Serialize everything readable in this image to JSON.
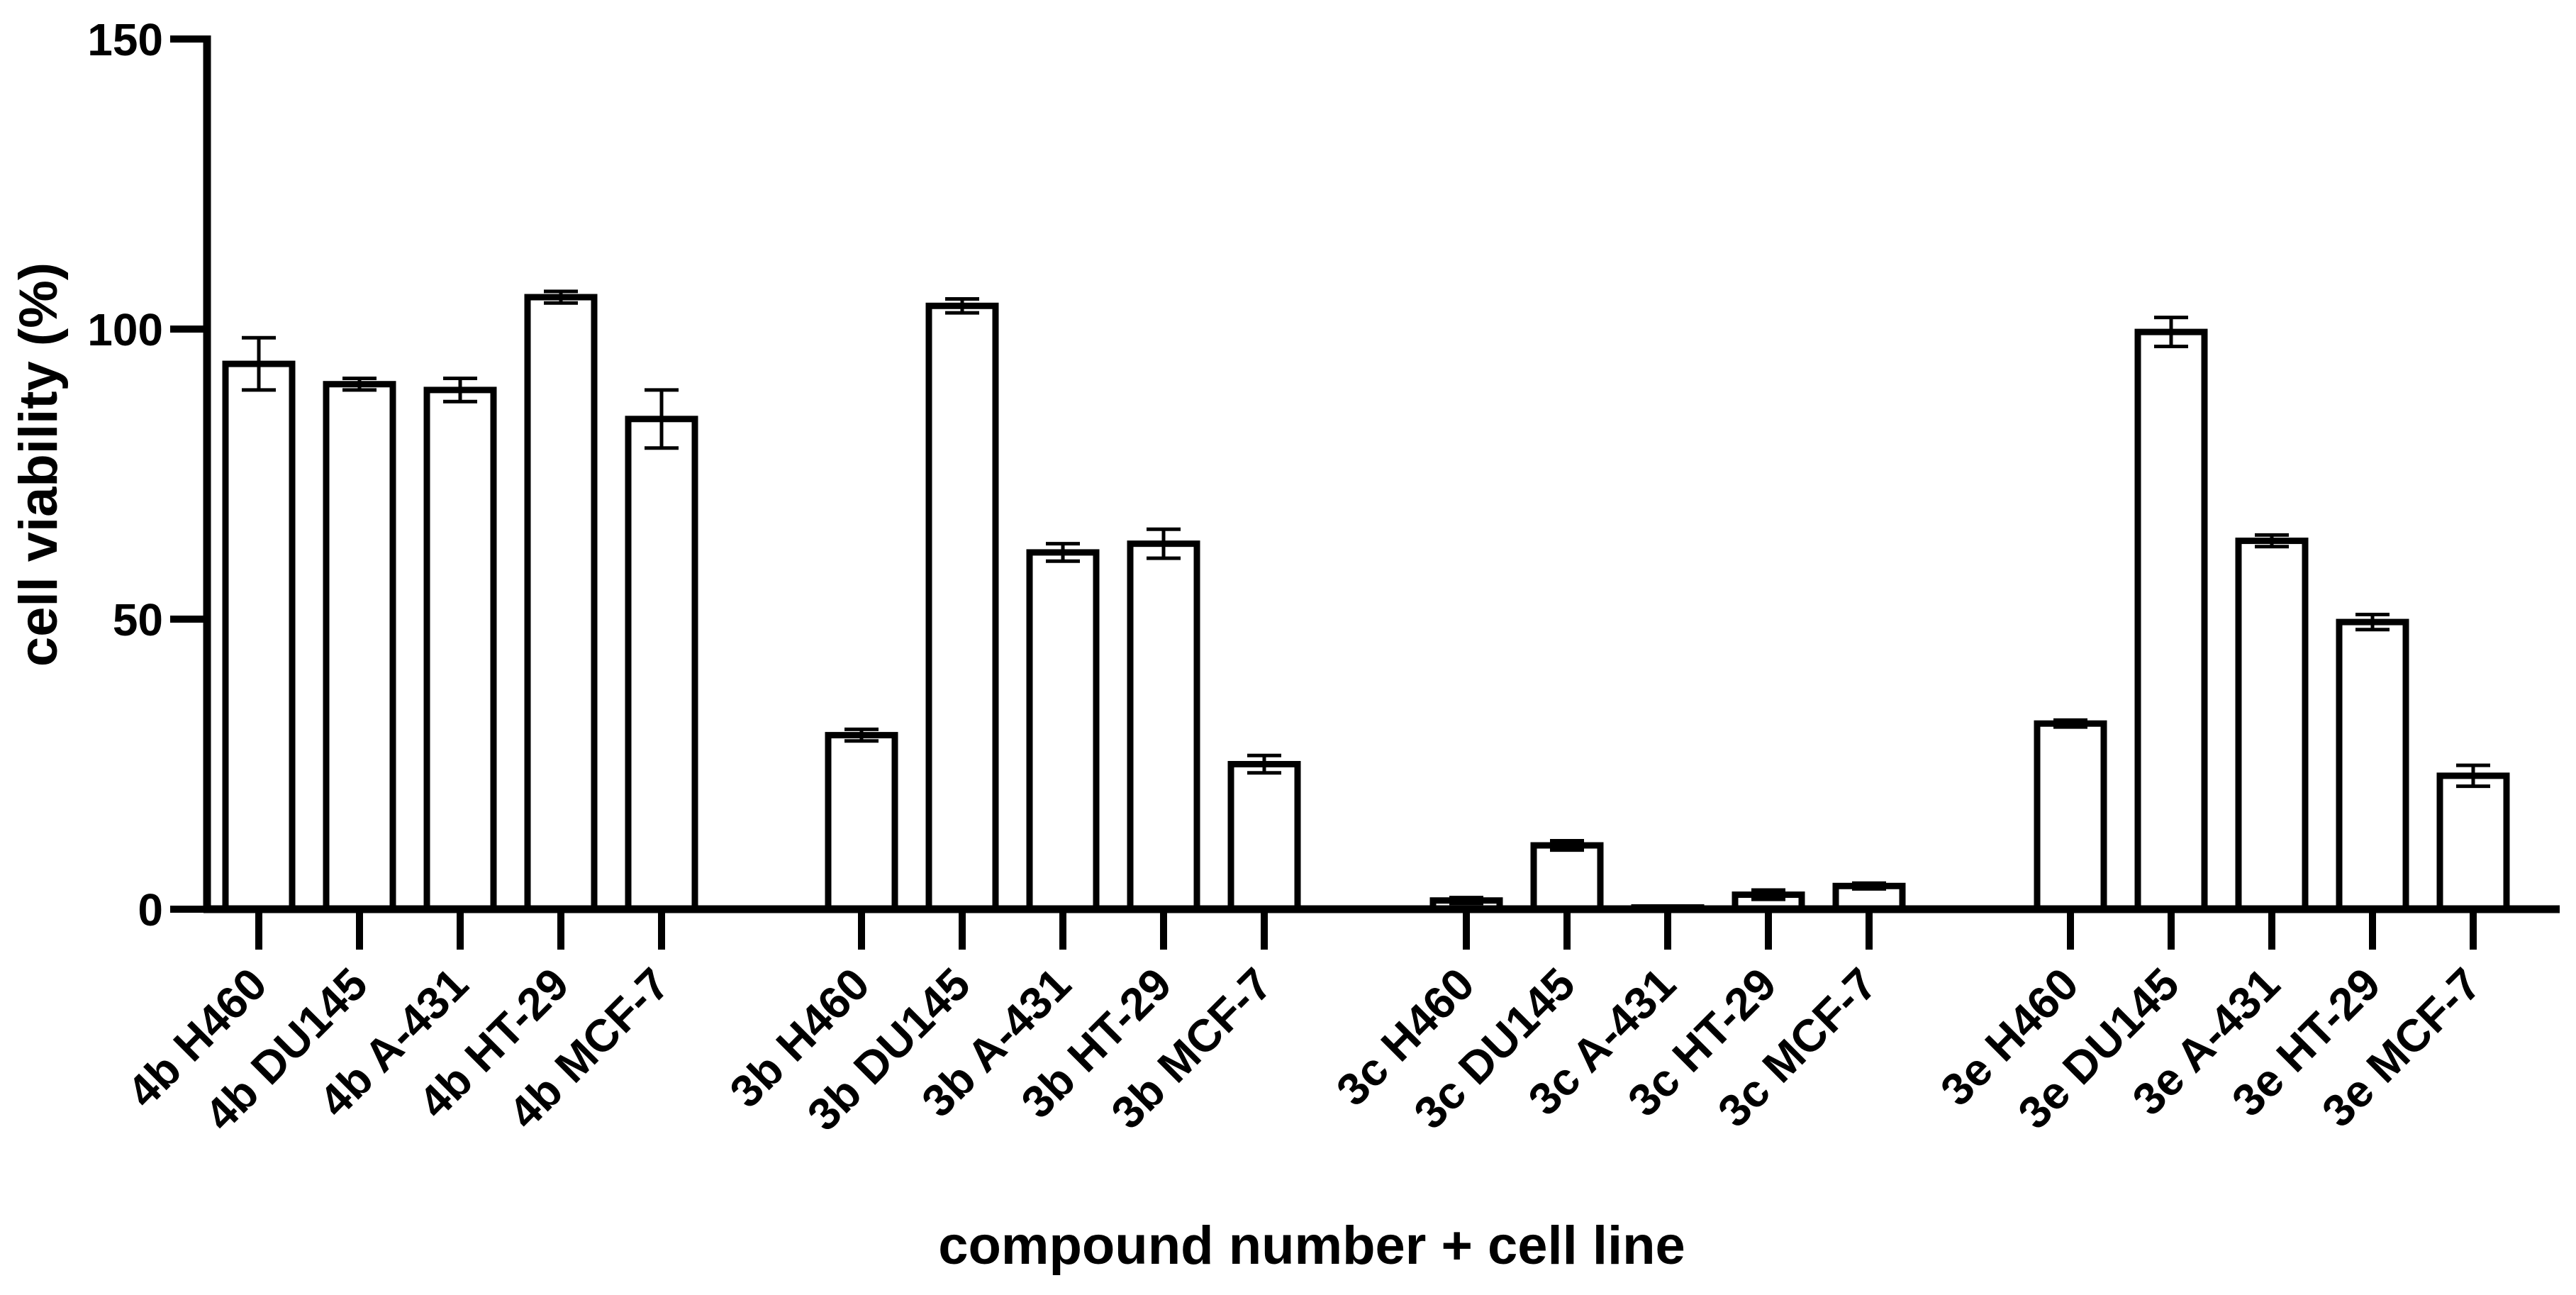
{
  "chart_data": {
    "type": "bar",
    "xlabel": "compound number + cell line",
    "ylabel": "cell viability (%)",
    "ylim": [
      0,
      150
    ],
    "yticks": [
      0,
      50,
      100,
      150
    ],
    "bar_fill": "#ffffff",
    "bar_stroke": "#000000",
    "groups": [
      {
        "categories": [
          "4b H460",
          "4b DU145",
          "4b A-431",
          "4b HT-29",
          "4b MCF-7"
        ],
        "values": [
          94,
          90.5,
          89.5,
          105.5,
          84.5
        ],
        "errors": [
          4.5,
          1,
          2,
          1,
          5
        ]
      },
      {
        "categories": [
          "3b H460",
          "3b DU145",
          "3b A-431",
          "3b HT-29",
          "3b MCF-7"
        ],
        "values": [
          30,
          104,
          61.5,
          63,
          25
        ],
        "errors": [
          1,
          1.2,
          1.5,
          2.5,
          1.5
        ]
      },
      {
        "categories": [
          "3c H460",
          "3c DU145",
          "3c A-431",
          "3c HT-29",
          "3c MCF-7"
        ],
        "values": [
          1.5,
          11,
          0.3,
          2.5,
          4
        ],
        "errors": [
          0.5,
          0.8,
          0.2,
          0.8,
          0.5
        ]
      },
      {
        "categories": [
          "3e H460",
          "3e DU145",
          "3e A-431",
          "3e HT-29",
          "3e MCF-7"
        ],
        "values": [
          32,
          99.5,
          63.5,
          49.5,
          23
        ],
        "errors": [
          0.6,
          2.5,
          1,
          1.3,
          1.8
        ]
      }
    ]
  }
}
